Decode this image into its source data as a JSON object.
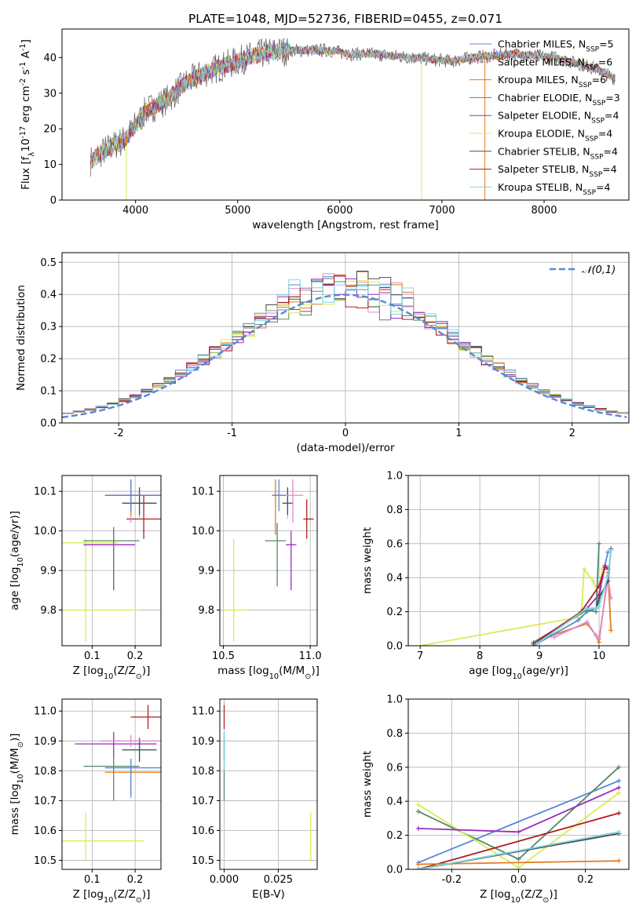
{
  "chart_data": [
    {
      "id": "spectrum",
      "type": "line",
      "title": "PLATE=1048, MJD=52736, FIBERID=0455, z=0.071",
      "xlabel": "wavelength [Angstrom, rest frame]",
      "ylabel": "Flux [f$_\\lambda$$10^{-17}$ erg cm$^{-2}$ s$^{-1}$ A$^{-1}$]",
      "xlim": [
        3280,
        8830
      ],
      "ylim": [
        0,
        48
      ],
      "xticks": [
        4000,
        5000,
        6000,
        7000,
        8000
      ],
      "yticks": [
        0,
        10,
        20,
        30,
        40
      ],
      "grid": false,
      "legend_position": "top-right",
      "continuum_x": [
        3560,
        3700,
        3900,
        4000,
        4100,
        4300,
        4500,
        4700,
        4900,
        5100,
        5300,
        5500,
        5700,
        5900,
        6100,
        6300,
        6500,
        6700,
        6900,
        7100,
        7300,
        7500,
        7700,
        7900,
        8100,
        8300,
        8500,
        8700
      ],
      "continuum_y": [
        11,
        14,
        17,
        21,
        25,
        28,
        33,
        36,
        38,
        40,
        41.5,
        42,
        42,
        42,
        41,
        41,
        40.5,
        40,
        39.5,
        39,
        40,
        40.5,
        41,
        40.5,
        40,
        38.5,
        37,
        34
      ],
      "series": [
        {
          "name": "Chabrier MILES, N$_{SSP}$=5",
          "color": "#5b86d6"
        },
        {
          "name": "Salpeter MILES, N$_{SSP}$=6",
          "color": "#e08ad0"
        },
        {
          "name": "Kroupa MILES, N$_{SSP}$=6",
          "color": "#e37c22"
        },
        {
          "name": "Chabrier ELODIE, N$_{SSP}$=3",
          "color": "#58876a"
        },
        {
          "name": "Salpeter ELODIE, N$_{SSP}$=4",
          "color": "#9c2bc2"
        },
        {
          "name": "Kroupa ELODIE, N$_{SSP}$=4",
          "color": "#d8ec56"
        },
        {
          "name": "Chabrier STELIB, N$_{SSP}$=4",
          "color": "#4d4d4d"
        },
        {
          "name": "Salpeter STELIB, N$_{SSP}$=4",
          "color": "#b01e1e"
        },
        {
          "name": "Kroupa STELIB, N$_{SSP}$=4",
          "color": "#7ed6e6"
        }
      ]
    },
    {
      "id": "residuals",
      "type": "line",
      "xlabel": "(data-model)/error",
      "ylabel": "Normed distribution",
      "xlim": [
        -2.5,
        2.5
      ],
      "ylim": [
        0,
        0.53
      ],
      "xticks": [
        -2,
        -1,
        0,
        1,
        2
      ],
      "yticks": [
        0.0,
        0.1,
        0.2,
        0.3,
        0.4,
        0.5
      ],
      "grid": true,
      "legend": "$\\mathcal{N}(0,1)$",
      "legend_position": "top-right",
      "bin_width": 0.1,
      "histogram_envelope": [
        0.03,
        0.03,
        0.04,
        0.04,
        0.05,
        0.05,
        0.06,
        0.06,
        0.07,
        0.08,
        0.09,
        0.1,
        0.11,
        0.13,
        0.14,
        0.15,
        0.17,
        0.19,
        0.21,
        0.23,
        0.25,
        0.27,
        0.29,
        0.31,
        0.33,
        0.35,
        0.37,
        0.39,
        0.41,
        0.43,
        0.44,
        0.45,
        0.46,
        0.45,
        0.43,
        0.42,
        0.41,
        0.4,
        0.39,
        0.38,
        0.37,
        0.35,
        0.33,
        0.31,
        0.29,
        0.27,
        0.25,
        0.23,
        0.21,
        0.19,
        0.17,
        0.15,
        0.13,
        0.12,
        0.1,
        0.09,
        0.08,
        0.07,
        0.06,
        0.05,
        0.05,
        0.04,
        0.04,
        0.03,
        0.03,
        0.03,
        0.02,
        0.02,
        0.02,
        0.02,
        0.02,
        0.02,
        0.02,
        0.02,
        0.02,
        0.02,
        0.02,
        0.02,
        0.02,
        0.02,
        0.02,
        0.02,
        0.02,
        0.02,
        0.02,
        0.02,
        0.02,
        0.02,
        0.02,
        0.02,
        0.02,
        0.02,
        0.02,
        0.02,
        0.02,
        0.02,
        0.02,
        0.02,
        0.02,
        0.02
      ],
      "gaussian_color": "#5b86d6"
    },
    {
      "id": "z_vs_age",
      "type": "scatter",
      "xlabel": "Z [log$_{10}$($Z/Z_\\odot$)]",
      "ylabel": "age  [log$_{10}$($age/yr$)]",
      "xlim": [
        0.03,
        0.26
      ],
      "ylim": [
        9.71,
        10.14
      ],
      "xticks": [
        0.1,
        0.2
      ],
      "yticks": [
        9.8,
        9.9,
        10.0,
        10.1
      ],
      "grid": true,
      "points": [
        {
          "c": "#d8ec56",
          "x": 0.085,
          "y": 9.97,
          "xe": [
            0.0,
            0.16
          ],
          "ye": [
            9.72,
            9.98
          ]
        },
        {
          "c": "#d8ec56",
          "x": 0.08,
          "y": 9.8,
          "xe": [
            0.02,
            0.21
          ],
          "ye": [
            9.8,
            9.8
          ]
        },
        {
          "c": "#9c2bc2",
          "x": 0.15,
          "y": 9.965,
          "xe": [
            0.08,
            0.2
          ],
          "ye": [
            9.85,
            10.0
          ]
        },
        {
          "c": "#58876a",
          "x": 0.15,
          "y": 9.975,
          "xe": [
            0.08,
            0.21
          ],
          "ye": [
            9.86,
            10.01
          ]
        },
        {
          "c": "#b01e1e",
          "x": 0.22,
          "y": 10.03,
          "xe": [
            0.18,
            0.26
          ],
          "ye": [
            9.98,
            10.09
          ]
        },
        {
          "c": "#7ed6e6",
          "x": 0.21,
          "y": 10.07,
          "xe": [
            0.17,
            0.25
          ],
          "ye": [
            10.03,
            10.1
          ]
        },
        {
          "c": "#4d4d4d",
          "x": 0.21,
          "y": 10.07,
          "xe": [
            0.17,
            0.25
          ],
          "ye": [
            10.04,
            10.11
          ]
        },
        {
          "c": "#e08ad0",
          "x": 0.19,
          "y": 10.09,
          "xe": [
            0.13,
            0.26
          ],
          "ye": [
            10.02,
            10.13
          ]
        },
        {
          "c": "#e37c22",
          "x": 0.19,
          "y": 10.09,
          "xe": [
            0.13,
            0.26
          ],
          "ye": [
            10.04,
            10.13
          ]
        },
        {
          "c": "#b01e1e",
          "x": 0.19,
          "y": 10.09,
          "xe": [
            0.13,
            0.26
          ],
          "ye": [
            10.06,
            10.12
          ]
        },
        {
          "c": "#5b86d6",
          "x": 0.19,
          "y": 10.09,
          "xe": [
            0.13,
            0.26
          ],
          "ye": [
            10.05,
            10.13
          ]
        }
      ]
    },
    {
      "id": "mass_vs_age",
      "type": "scatter",
      "xlabel": "mass [log$_{10}$($M/M_\\odot$)]",
      "ylabel": "",
      "xlim": [
        10.48,
        11.04
      ],
      "ylim": [
        9.71,
        10.14
      ],
      "xticks": [
        10.5,
        11.0
      ],
      "yticks": [
        9.8,
        9.9,
        10.0,
        10.1
      ],
      "grid": true,
      "points": [
        {
          "c": "#d8ec56",
          "x": 10.56,
          "y": 9.8,
          "xe": [
            10.5,
            10.64
          ],
          "ye": [
            9.72,
            9.98
          ]
        },
        {
          "c": "#9c2bc2",
          "x": 10.89,
          "y": 9.965,
          "xe": [
            10.86,
            10.92
          ],
          "ye": [
            9.85,
            10.0
          ]
        },
        {
          "c": "#58876a",
          "x": 10.81,
          "y": 9.975,
          "xe": [
            10.74,
            10.86
          ],
          "ye": [
            9.86,
            10.02
          ]
        },
        {
          "c": "#b01e1e",
          "x": 10.98,
          "y": 10.03,
          "xe": [
            10.96,
            11.02
          ],
          "ye": [
            9.98,
            10.08
          ]
        },
        {
          "c": "#7ed6e6",
          "x": 10.87,
          "y": 10.07,
          "xe": [
            10.84,
            10.9
          ],
          "ye": [
            10.03,
            10.1
          ]
        },
        {
          "c": "#4d4d4d",
          "x": 10.87,
          "y": 10.07,
          "xe": [
            10.84,
            10.9
          ],
          "ye": [
            10.04,
            10.11
          ]
        },
        {
          "c": "#e08ad0",
          "x": 10.9,
          "y": 10.09,
          "xe": [
            10.82,
            10.96
          ],
          "ye": [
            10.02,
            10.13
          ]
        },
        {
          "c": "#e37c22",
          "x": 10.8,
          "y": 10.09,
          "xe": [
            10.78,
            10.84
          ],
          "ye": [
            9.99,
            10.13
          ]
        },
        {
          "c": "#5b86d6",
          "x": 10.82,
          "y": 10.09,
          "xe": [
            10.78,
            10.86
          ],
          "ye": [
            10.05,
            10.13
          ]
        }
      ]
    },
    {
      "id": "age_vs_weight",
      "type": "line",
      "xlabel": "age  [log$_{10}$($age/yr$)]",
      "ylabel": "mass weight",
      "xlim": [
        6.8,
        10.5
      ],
      "ylim": [
        0,
        1.0
      ],
      "xticks": [
        7,
        8,
        9,
        10
      ],
      "yticks": [
        0.0,
        0.2,
        0.4,
        0.6,
        0.8,
        1.0
      ],
      "grid": true,
      "series": [
        {
          "c": "#d8ec56",
          "x": [
            7.0,
            9.7,
            9.75,
            9.9,
            10.0,
            10.05,
            10.15
          ],
          "y": [
            0.0,
            0.17,
            0.45,
            0.38,
            0.3,
            0.45,
            0.46
          ]
        },
        {
          "c": "#e37c22",
          "x": [
            9.2,
            9.8,
            9.95,
            10.0,
            10.15,
            10.2
          ],
          "y": [
            0.06,
            0.13,
            0.06,
            0.02,
            0.43,
            0.09
          ]
        },
        {
          "c": "#5b86d6",
          "x": [
            8.9,
            9.65,
            9.8,
            9.95,
            10.0,
            10.05,
            10.15
          ],
          "y": [
            0.0,
            0.15,
            0.2,
            0.22,
            0.26,
            0.4,
            0.55
          ]
        },
        {
          "c": "#9c2bc2",
          "x": [
            9.8,
            10.0,
            10.1,
            10.15
          ],
          "y": [
            0.22,
            0.3,
            0.47,
            0.45
          ]
        },
        {
          "c": "#58876a",
          "x": [
            8.9,
            9.8,
            9.95,
            10.0
          ],
          "y": [
            0.02,
            0.21,
            0.2,
            0.6
          ]
        },
        {
          "c": "#b01e1e",
          "x": [
            8.9,
            9.7,
            10.0,
            10.1
          ],
          "y": [
            0.01,
            0.2,
            0.35,
            0.46
          ]
        },
        {
          "c": "#e08ad0",
          "x": [
            9.25,
            9.8,
            9.95,
            10.0,
            10.15,
            10.2
          ],
          "y": [
            0.05,
            0.14,
            0.06,
            0.04,
            0.4,
            0.28
          ]
        },
        {
          "c": "#4d4d4d",
          "x": [
            8.95,
            9.8,
            9.95,
            10.0,
            10.15,
            10.2
          ],
          "y": [
            0.01,
            0.22,
            0.22,
            0.28,
            0.38,
            0.57
          ]
        },
        {
          "c": "#7ed6e6",
          "x": [
            8.95,
            9.8,
            9.95,
            10.0,
            10.15,
            10.2
          ],
          "y": [
            0.01,
            0.22,
            0.22,
            0.23,
            0.41,
            0.56
          ]
        }
      ]
    },
    {
      "id": "z_vs_mass",
      "type": "scatter",
      "xlabel": "Z [log$_{10}$($Z/Z_\\odot$)]",
      "ylabel": "mass [log$_{10}$($M/M_\\odot$)]",
      "xlim": [
        0.03,
        0.26
      ],
      "ylim": [
        10.47,
        11.04
      ],
      "xticks": [
        0.1,
        0.2
      ],
      "yticks": [
        10.5,
        10.6,
        10.7,
        10.8,
        10.9,
        11.0
      ],
      "grid": true,
      "points": [
        {
          "c": "#d8ec56",
          "x": 0.085,
          "y": 10.565,
          "xe": [
            0.03,
            0.22
          ],
          "ye": [
            10.5,
            10.66
          ]
        },
        {
          "c": "#9c2bc2",
          "x": 0.15,
          "y": 10.89,
          "xe": [
            0.06,
            0.25
          ],
          "ye": [
            10.84,
            10.93
          ]
        },
        {
          "c": "#58876a",
          "x": 0.15,
          "y": 10.815,
          "xe": [
            0.08,
            0.21
          ],
          "ye": [
            10.7,
            10.84
          ]
        },
        {
          "c": "#b01e1e",
          "x": 0.23,
          "y": 10.98,
          "xe": [
            0.19,
            0.26
          ],
          "ye": [
            10.94,
            11.02
          ]
        },
        {
          "c": "#7ed6e6",
          "x": 0.21,
          "y": 10.87,
          "xe": [
            0.17,
            0.25
          ],
          "ye": [
            10.83,
            10.9
          ]
        },
        {
          "c": "#4d4d4d",
          "x": 0.21,
          "y": 10.87,
          "xe": [
            0.17,
            0.25
          ],
          "ye": [
            10.83,
            10.91
          ]
        },
        {
          "c": "#e08ad0",
          "x": 0.19,
          "y": 10.9,
          "xe": [
            0.12,
            0.26
          ],
          "ye": [
            10.88,
            10.92
          ]
        },
        {
          "c": "#e37c22",
          "x": 0.19,
          "y": 10.795,
          "xe": [
            0.13,
            0.26
          ],
          "ye": [
            10.72,
            10.84
          ]
        },
        {
          "c": "#5b86d6",
          "x": 0.19,
          "y": 10.81,
          "xe": [
            0.13,
            0.26
          ],
          "ye": [
            10.71,
            10.84
          ]
        }
      ]
    },
    {
      "id": "ebv_vs_mass",
      "type": "scatter",
      "xlabel": "E(B-V)",
      "ylabel": "",
      "xlim": [
        -0.002,
        0.043
      ],
      "ylim": [
        10.47,
        11.04
      ],
      "xticks": [
        0.0,
        0.025
      ],
      "yticks": [
        10.5,
        10.6,
        10.7,
        10.8,
        10.9,
        11.0
      ],
      "grid": true,
      "points": [
        {
          "c": "#d8ec56",
          "x": 0.04,
          "y": 10.565,
          "xe": [
            0.04,
            0.04
          ],
          "ye": [
            10.5,
            10.66
          ]
        },
        {
          "c": "#b01e1e",
          "x": 0.0,
          "y": 10.98,
          "xe": [
            0.0,
            0.0
          ],
          "ye": [
            10.94,
            11.02
          ]
        },
        {
          "c": "#9c2bc2",
          "x": 0.0,
          "y": 10.89,
          "xe": [
            0.0,
            0.0
          ],
          "ye": [
            10.84,
            10.93
          ]
        },
        {
          "c": "#58876a",
          "x": 0.0,
          "y": 10.8,
          "xe": [
            0.0,
            0.0
          ],
          "ye": [
            10.7,
            10.9
          ]
        },
        {
          "c": "#7ed6e6",
          "x": 0.0,
          "y": 10.87,
          "xe": [
            0.0,
            0.0
          ],
          "ye": [
            10.8,
            10.93
          ]
        }
      ]
    },
    {
      "id": "z_vs_weight",
      "type": "line",
      "xlabel": "Z [log$_{10}$($Z/Z_\\odot$)]",
      "ylabel": "mass weight",
      "xlim": [
        -0.33,
        0.33
      ],
      "ylim": [
        0,
        1.0
      ],
      "xticks": [
        -0.2,
        0.0,
        0.2
      ],
      "yticks": [
        0.0,
        0.2,
        0.4,
        0.6,
        0.8,
        1.0
      ],
      "grid": true,
      "series": [
        {
          "c": "#5b86d6",
          "x": [
            -0.3,
            0.3
          ],
          "y": [
            0.04,
            0.52
          ]
        },
        {
          "c": "#58876a",
          "x": [
            -0.3,
            0.0,
            0.3
          ],
          "y": [
            0.34,
            0.06,
            0.6
          ]
        },
        {
          "c": "#d8ec56",
          "x": [
            -0.3,
            0.0,
            0.3
          ],
          "y": [
            0.38,
            0.01,
            0.45
          ]
        },
        {
          "c": "#9c2bc2",
          "x": [
            -0.3,
            0.0,
            0.3
          ],
          "y": [
            0.24,
            0.22,
            0.48
          ]
        },
        {
          "c": "#b01e1e",
          "x": [
            -0.3,
            0.3
          ],
          "y": [
            0.0,
            0.33
          ]
        },
        {
          "c": "#e37c22",
          "x": [
            -0.3,
            0.3
          ],
          "y": [
            0.03,
            0.05
          ]
        },
        {
          "c": "#4d4d4d",
          "x": [
            -0.3,
            0.3
          ],
          "y": [
            0.0,
            0.21
          ]
        },
        {
          "c": "#7ed6e6",
          "x": [
            -0.3,
            0.3
          ],
          "y": [
            0.0,
            0.22
          ]
        }
      ]
    }
  ]
}
